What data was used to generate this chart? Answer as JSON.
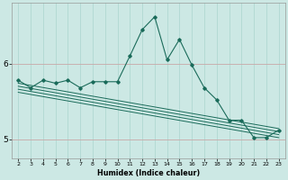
{
  "xlabel": "Humidex (Indice chaleur)",
  "bg_color": "#cce8e4",
  "line_color": "#1a6b5a",
  "grid_color_x": "#b0d8d2",
  "grid_color_y": "#c8a8a8",
  "x": [
    2,
    3,
    4,
    5,
    6,
    7,
    8,
    9,
    10,
    11,
    12,
    13,
    14,
    15,
    16,
    17,
    18,
    19,
    20,
    21,
    22,
    23
  ],
  "y_main": [
    5.78,
    5.68,
    5.78,
    5.74,
    5.78,
    5.68,
    5.76,
    5.76,
    5.76,
    6.1,
    6.45,
    6.62,
    6.05,
    6.32,
    5.98,
    5.68,
    5.52,
    5.25,
    5.25,
    5.02,
    5.02,
    5.12
  ],
  "trend_x_start": 2,
  "trend_x_end": 23,
  "trend_lines": [
    [
      5.74,
      5.14
    ],
    [
      5.7,
      5.1
    ],
    [
      5.66,
      5.06
    ],
    [
      5.62,
      5.02
    ]
  ],
  "ylim": [
    4.75,
    6.8
  ],
  "xlim": [
    1.5,
    23.5
  ],
  "yticks": [
    5,
    6
  ],
  "xticks": [
    2,
    3,
    4,
    5,
    6,
    7,
    8,
    9,
    10,
    11,
    12,
    13,
    14,
    15,
    16,
    17,
    18,
    19,
    20,
    21,
    22,
    23
  ]
}
